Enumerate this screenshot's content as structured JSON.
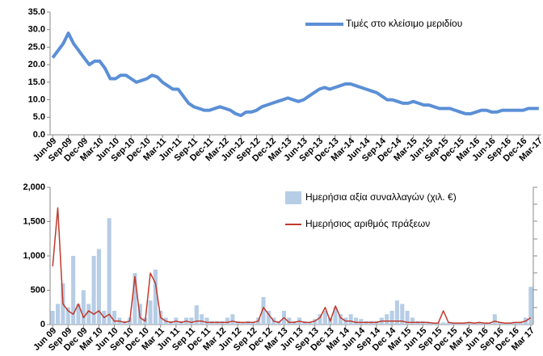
{
  "chart_data": [
    {
      "type": "line",
      "categories": [
        "Jun-09",
        null,
        null,
        "Sep-09",
        null,
        null,
        "Dec-09",
        null,
        null,
        "Mar-10",
        null,
        null,
        "Jun-10",
        null,
        null,
        "Sep-10",
        null,
        null,
        "Dec-10",
        null,
        null,
        "Mar-11",
        null,
        null,
        "Jun-11",
        null,
        null,
        "Sep-11",
        null,
        null,
        "Dec-11",
        null,
        null,
        "Mar-12",
        null,
        null,
        "Jun-12",
        null,
        null,
        "Sep-12",
        null,
        null,
        "Dec-12",
        null,
        null,
        "Mar-13",
        null,
        null,
        "Jun-13",
        null,
        null,
        "Sep-13",
        null,
        null,
        "Dec-13",
        null,
        null,
        "Mar-14",
        null,
        null,
        "Jun-14",
        null,
        null,
        "Sep-14",
        null,
        null,
        "Dec-14",
        null,
        null,
        "Mar-15",
        null,
        null,
        "Jun-15",
        null,
        null,
        "Sep-15",
        null,
        null,
        "Dec-15",
        null,
        null,
        "Mar-16",
        null,
        null,
        "Jun-16",
        null,
        null,
        "Sep-16",
        null,
        null,
        "Dec-16",
        null,
        null,
        "Mar-17"
      ],
      "series": [
        {
          "name": "Τιμές στο κλείσιμο μεριδίου",
          "color": "#5b8fd6",
          "values": [
            22,
            24,
            26,
            29,
            26,
            24,
            22,
            20,
            21,
            21,
            19,
            16,
            16,
            17,
            17,
            16,
            15,
            15.5,
            16,
            17,
            16.5,
            15,
            14,
            13,
            13,
            11,
            9,
            8,
            7.5,
            7,
            7,
            7.5,
            8,
            7.5,
            7,
            6,
            5.5,
            6.5,
            6.5,
            7,
            8,
            8.5,
            9,
            9.5,
            10,
            10.5,
            10,
            9.5,
            10,
            11,
            12,
            13,
            13.5,
            13,
            13.5,
            14,
            14.5,
            14.5,
            14,
            13.5,
            13,
            12.5,
            12,
            11,
            10,
            10,
            9.5,
            9,
            9,
            9.5,
            9,
            8.5,
            8.5,
            8,
            7.5,
            7.5,
            7.5,
            7,
            6.5,
            6,
            6,
            6.5,
            7,
            7,
            6.5,
            6.5,
            7,
            7,
            7,
            7,
            7,
            7.5,
            7.5,
            7.5
          ]
        }
      ],
      "ylim": [
        0,
        35
      ],
      "yticks": [
        {
          "value": 0,
          "label": "0.0"
        },
        {
          "value": 5,
          "label": "5.0"
        },
        {
          "value": 10,
          "label": "10.0"
        },
        {
          "value": 15,
          "label": "15.0"
        },
        {
          "value": 20,
          "label": "20.0"
        },
        {
          "value": 25,
          "label": "25.0"
        },
        {
          "value": 30,
          "label": "30.0"
        },
        {
          "value": 35,
          "label": "35.0"
        }
      ]
    },
    {
      "type": "bar",
      "categories": [
        "Jun 09",
        null,
        null,
        "Sep 09",
        null,
        null,
        "Dec 09",
        null,
        null,
        "Mar 10",
        null,
        null,
        "Jun 10",
        null,
        null,
        "Sep 10",
        null,
        null,
        "Dec 10",
        null,
        null,
        "Mar 11",
        null,
        null,
        "Jun 11",
        null,
        null,
        "Sep 11",
        null,
        null,
        "Dec 11",
        null,
        null,
        "Mar 12",
        null,
        null,
        "Jun 12",
        null,
        null,
        "Sep 12",
        null,
        null,
        "Dec 12",
        null,
        null,
        "Mar 13",
        null,
        null,
        "Jun 13",
        null,
        null,
        "Sep 13",
        null,
        null,
        "Dec 13",
        null,
        null,
        "Mar 14",
        null,
        null,
        "Jun 14",
        null,
        null,
        "Sep 14",
        null,
        null,
        "Dec 14",
        null,
        null,
        "Mar 15",
        null,
        null,
        "Jun 15",
        null,
        null,
        "Sep 15",
        null,
        null,
        "Dec 15",
        null,
        null,
        "Mar 16",
        null,
        null,
        "Jun 16",
        null,
        null,
        "Sep 16",
        null,
        null,
        "Dec 16",
        null,
        null,
        "Mar 17"
      ],
      "series": [
        {
          "name": "Ημερήσια αξία συναλλαγών (χιλ. €)",
          "color": "#b7cde6",
          "values": [
            200,
            300,
            600,
            250,
            1000,
            300,
            500,
            300,
            1000,
            1100,
            200,
            1550,
            200,
            100,
            50,
            100,
            750,
            300,
            100,
            350,
            800,
            200,
            100,
            50,
            100,
            50,
            100,
            100,
            280,
            150,
            100,
            50,
            50,
            50,
            100,
            150,
            50,
            30,
            50,
            30,
            100,
            400,
            200,
            100,
            50,
            200,
            100,
            50,
            100,
            50,
            30,
            80,
            150,
            200,
            100,
            250,
            150,
            100,
            150,
            100,
            80,
            50,
            50,
            50,
            100,
            150,
            200,
            350,
            300,
            200,
            100,
            50,
            50,
            30,
            20,
            20,
            30,
            30,
            20,
            20,
            20,
            30,
            20,
            30,
            20,
            20,
            150,
            30,
            20,
            20,
            30,
            30,
            100,
            550
          ]
        },
        {
          "name": "Ημερήσιος αριθμός πράξεων",
          "color": "#c0392b",
          "type": "line",
          "values": [
            850,
            1700,
            300,
            200,
            150,
            300,
            100,
            200,
            150,
            200,
            100,
            150,
            50,
            50,
            30,
            50,
            700,
            100,
            50,
            750,
            600,
            100,
            50,
            30,
            50,
            30,
            50,
            30,
            50,
            50,
            30,
            30,
            30,
            30,
            30,
            50,
            30,
            30,
            30,
            30,
            50,
            250,
            150,
            50,
            30,
            100,
            30,
            30,
            50,
            30,
            30,
            50,
            100,
            250,
            50,
            270,
            100,
            50,
            50,
            30,
            30,
            30,
            30,
            30,
            50,
            50,
            50,
            50,
            50,
            30,
            30,
            30,
            30,
            30,
            20,
            20,
            200,
            30,
            20,
            20,
            20,
            30,
            20,
            30,
            20,
            20,
            50,
            30,
            20,
            20,
            30,
            30,
            50,
            100
          ]
        }
      ],
      "ylim": [
        0,
        2000
      ],
      "yticks": [
        0,
        500,
        {
          "value": 1000,
          "label": "1,000"
        },
        {
          "value": 1500,
          "label": "1,500"
        },
        {
          "value": 2000,
          "label": "2,000"
        }
      ]
    }
  ]
}
